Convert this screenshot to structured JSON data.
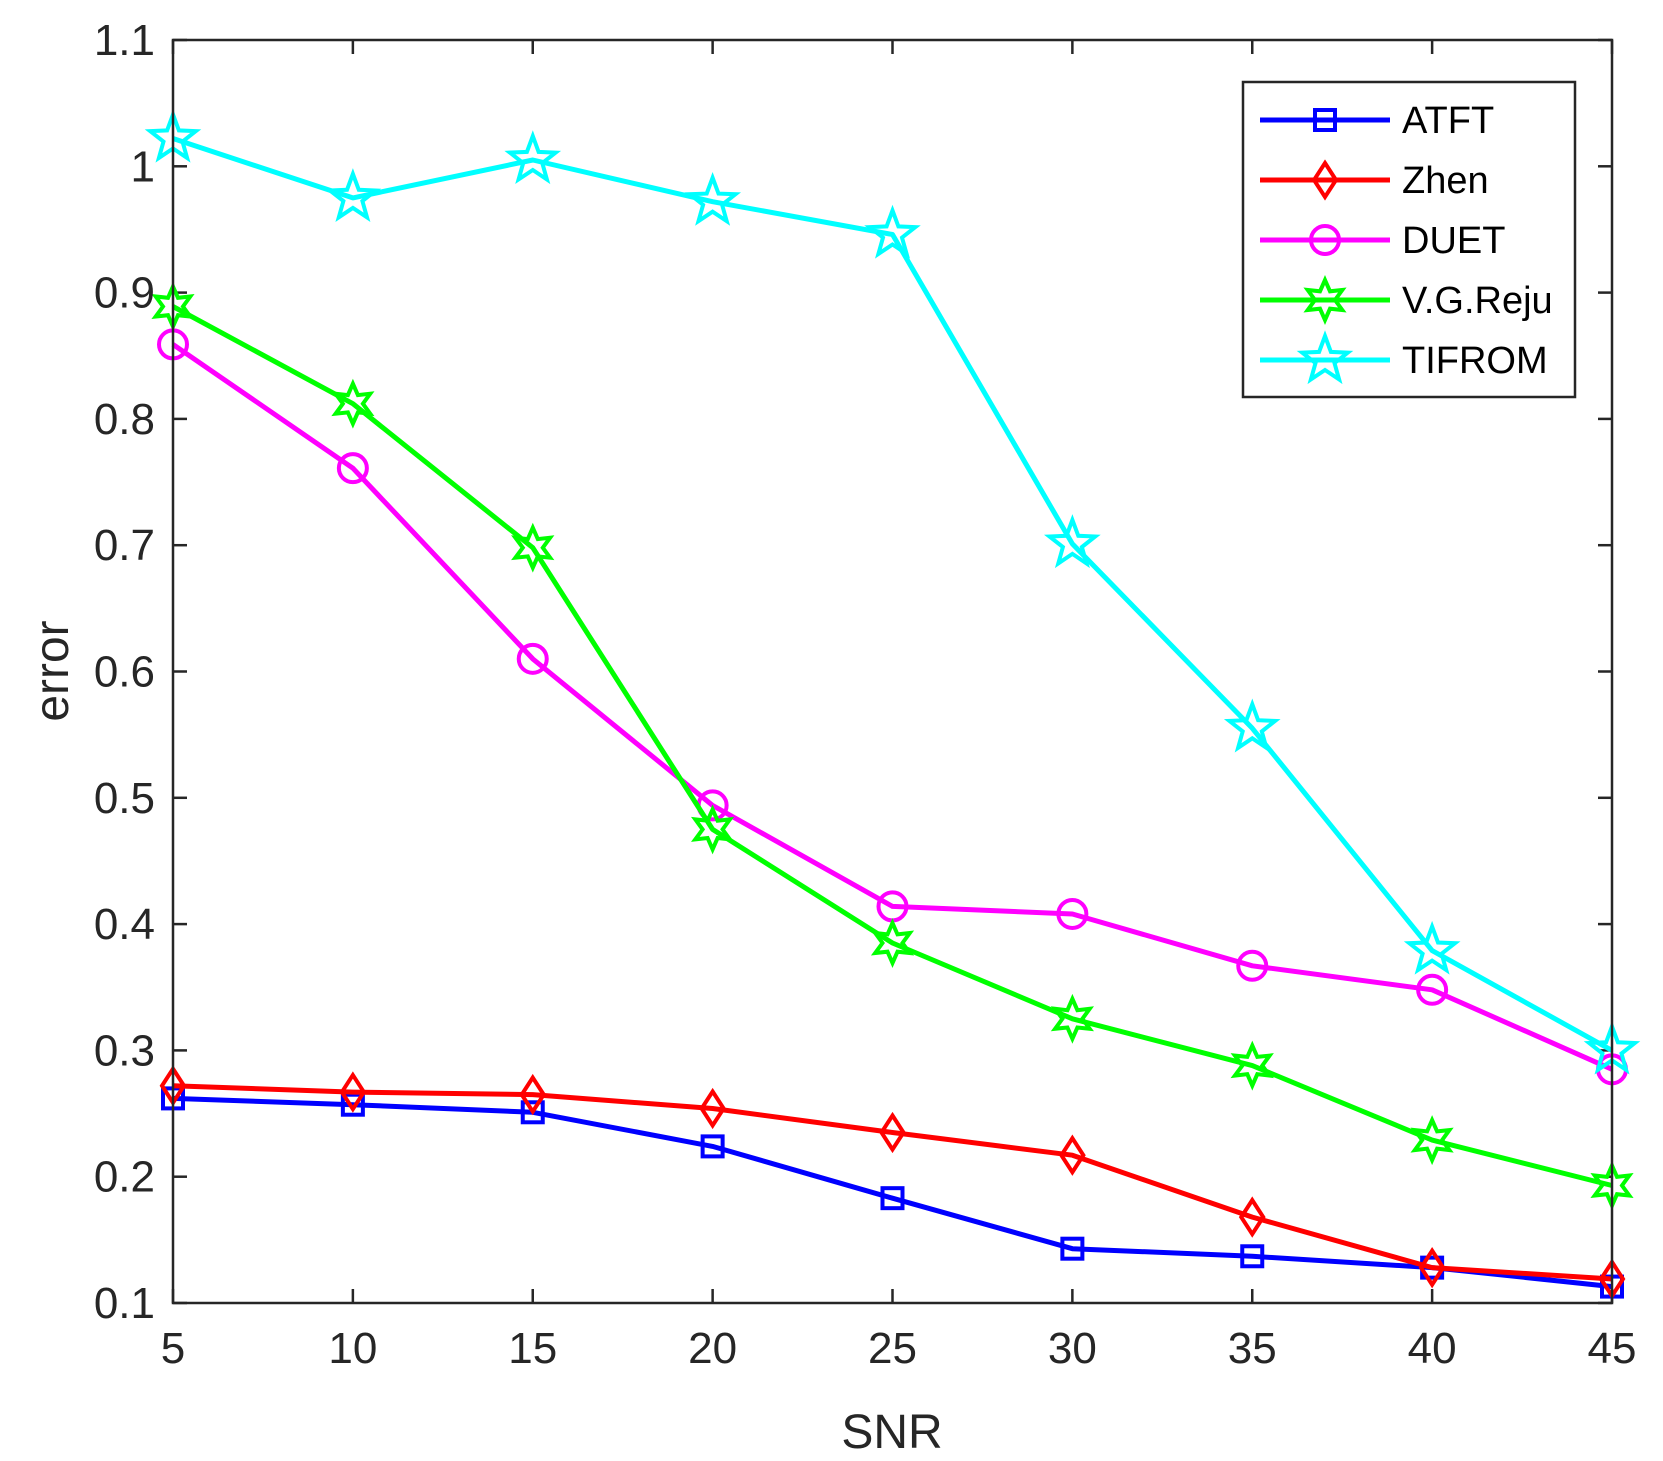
{
  "chart_data": {
    "type": "line",
    "xlabel": "SNR",
    "ylabel": "error",
    "xlim": [
      5,
      45
    ],
    "ylim": [
      0.1,
      1.1
    ],
    "x": [
      5,
      10,
      15,
      20,
      25,
      30,
      35,
      40,
      45
    ],
    "xticks": [
      "5",
      "10",
      "15",
      "20",
      "25",
      "30",
      "35",
      "40",
      "45"
    ],
    "yticks": [
      "0.1",
      "0.2",
      "0.3",
      "0.4",
      "0.5",
      "0.6",
      "0.7",
      "0.8",
      "0.9",
      "1",
      "1.1"
    ],
    "legend_position": "top-right",
    "series": [
      {
        "name": "ATFT",
        "color": "#0000ff",
        "marker": "square",
        "values": [
          0.262,
          0.257,
          0.251,
          0.224,
          0.183,
          0.143,
          0.137,
          0.128,
          0.113
        ]
      },
      {
        "name": "Zhen",
        "color": "#ff0000",
        "marker": "diamond",
        "values": [
          0.272,
          0.267,
          0.265,
          0.254,
          0.235,
          0.217,
          0.168,
          0.128,
          0.119
        ]
      },
      {
        "name": "DUET",
        "color": "#ff00ff",
        "marker": "circle",
        "values": [
          0.859,
          0.761,
          0.61,
          0.494,
          0.414,
          0.408,
          0.367,
          0.348,
          0.285
        ]
      },
      {
        "name": "V.G.Reju",
        "color": "#00ff00",
        "marker": "hexagram",
        "values": [
          0.889,
          0.812,
          0.698,
          0.475,
          0.385,
          0.325,
          0.288,
          0.229,
          0.193
        ]
      },
      {
        "name": "TIFROM",
        "color": "#00ffff",
        "marker": "star",
        "values": [
          1.022,
          0.975,
          1.005,
          0.972,
          0.946,
          0.701,
          0.555,
          0.379,
          0.3
        ]
      }
    ]
  }
}
